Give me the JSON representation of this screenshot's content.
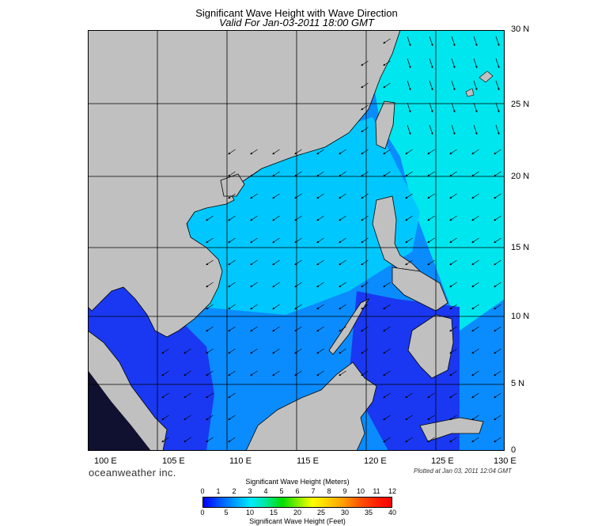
{
  "title": "Significant Wave Height with Wave Direction",
  "subtitle": "Valid For Jan-03-2011 18:00 GMT",
  "lat_labels": [
    "30 N",
    "25 N",
    "20 N",
    "15 N",
    "10 N",
    "5 N",
    "0"
  ],
  "lon_labels": [
    "100 E",
    "105 E",
    "110 E",
    "115 E",
    "120 E",
    "125 E",
    "130 E"
  ],
  "brand": "oceanweather inc.",
  "plotted": "Plotted at Jan 03, 2011 12:04 GMT",
  "scale": {
    "meters_title": "Significant Wave Height (Meters)",
    "feet_title": "Significant Wave Height (Feet)",
    "meters_ticks": [
      "0",
      "1",
      "2",
      "3",
      "4",
      "5",
      "6",
      "7",
      "8",
      "9",
      "10",
      "11",
      "12"
    ],
    "feet_ticks": [
      "0",
      "5",
      "10",
      "15",
      "20",
      "25",
      "30",
      "35",
      "40"
    ]
  },
  "colors": {
    "land": "#c0c0c0",
    "sea_low": "#1840f0",
    "sea_mid": "#00a8ff",
    "sea_high": "#00e8e8"
  }
}
